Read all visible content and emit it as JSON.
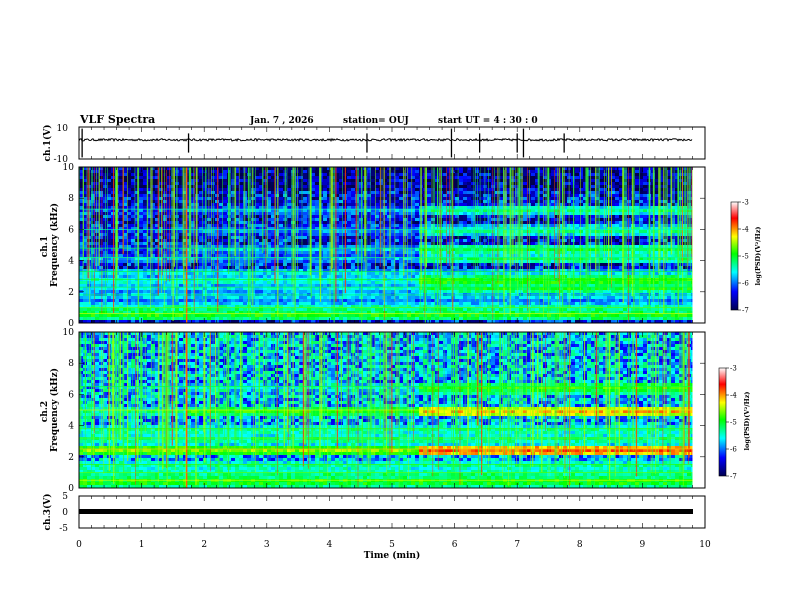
{
  "chart_data": {
    "type": "heatmap",
    "title": "VLF Spectra",
    "date": "Jan. 7 , 2026",
    "station": "station= OUJ",
    "start_time": "start UT = 4 : 30 : 0",
    "x": {
      "label": "Time (min)",
      "range": [
        0,
        10
      ],
      "ticks": [
        "0",
        "1",
        "2",
        "3",
        "4",
        "5",
        "6",
        "7",
        "8",
        "9",
        "10"
      ],
      "data_end": 9.8
    },
    "panels": [
      {
        "id": "waveform-1",
        "type": "line",
        "ylabel": "ch.1(V)",
        "ylim": [
          -10,
          10
        ],
        "ytick_labels": [
          "10",
          "-10"
        ],
        "baseline_v": 2,
        "spikes_min": [
          0.05,
          1.75,
          4.6,
          5.95,
          6.4,
          7.0,
          7.1,
          7.75
        ]
      },
      {
        "id": "spectrogram-1",
        "type": "heatmap",
        "ylabel": "ch.1\nFrequency (kHz)",
        "ylim": [
          0,
          10
        ],
        "ytick_labels": [
          "0",
          "2",
          "4",
          "6",
          "8",
          "10"
        ],
        "baseline_level": -6.4,
        "regime_change_min": [
          1.72,
          5.4
        ],
        "bands": [
          {
            "f_khz": 0.6,
            "level": -4.9
          },
          {
            "f_khz": 1.0,
            "level": -5.2
          },
          {
            "f_khz": 1.8,
            "level": -5.6
          },
          {
            "f_khz": 2.3,
            "level": -5.6
          },
          {
            "f_khz": 2.8,
            "level": -5.4
          },
          {
            "f_khz": 3.3,
            "level": -5.6
          },
          {
            "f_khz": 4.2,
            "level": -5.8
          },
          {
            "f_khz": 4.8,
            "level": -5.7
          },
          {
            "f_khz": 6.0,
            "level": -5.9
          },
          {
            "f_khz": 7.3,
            "level": -5.9
          }
        ]
      },
      {
        "id": "spectrogram-2",
        "type": "heatmap",
        "ylabel": "ch.2\nFrequency (kHz)",
        "ylim": [
          0,
          10
        ],
        "ytick_labels": [
          "0",
          "2",
          "4",
          "6",
          "8",
          "10"
        ],
        "baseline_level": -5.8,
        "regime_change_min": [
          1.72,
          5.4
        ],
        "bands": [
          {
            "f_khz": 0.5,
            "level": -4.8
          },
          {
            "f_khz": 1.0,
            "level": -5.2
          },
          {
            "f_khz": 1.5,
            "level": -5.3
          },
          {
            "f_khz": 2.5,
            "level": -4.6
          },
          {
            "f_khz": 3.2,
            "level": -5.2
          },
          {
            "f_khz": 3.8,
            "level": -5.3
          },
          {
            "f_khz": 5.0,
            "level": -4.9
          },
          {
            "f_khz": 6.5,
            "level": -5.6
          }
        ]
      },
      {
        "id": "waveform-3",
        "type": "line",
        "ylabel": "ch.3(V)",
        "ylim": [
          -5,
          5
        ],
        "ytick_labels": [
          "5",
          "0",
          "-5"
        ],
        "baseline_v": 0
      }
    ],
    "colorbar": {
      "label": "log(PSD)(V²/Hz)",
      "range": [
        -7,
        -3
      ],
      "tick_labels": [
        "-7",
        "-6",
        "-5",
        "-4",
        "-3"
      ],
      "colors": [
        "#000050",
        "#0000ff",
        "#00ffff",
        "#00ff00",
        "#ffff00",
        "#ff0000",
        "#ffffff"
      ]
    }
  }
}
